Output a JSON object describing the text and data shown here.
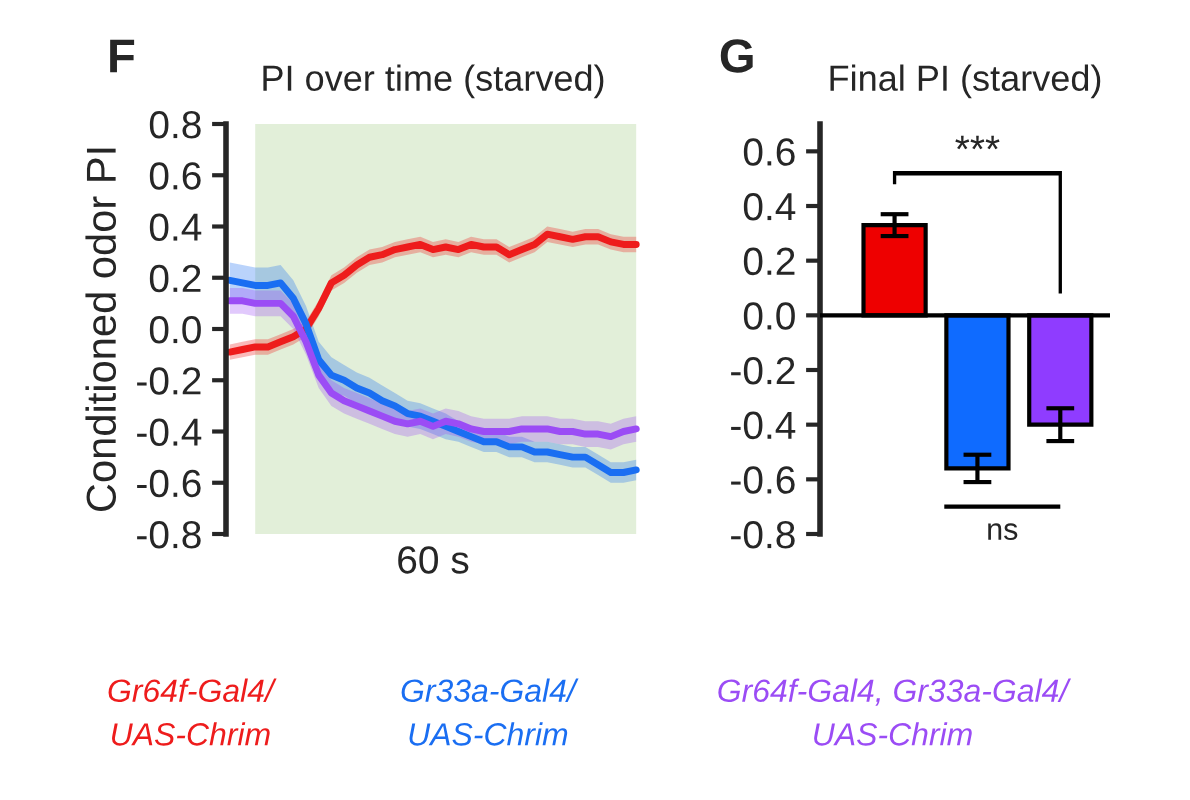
{
  "chart_data": [
    {
      "type": "line",
      "title": "PI over time (starved)",
      "xlabel": "60 s",
      "ylabel": "Conditioned odor PI",
      "annotations": [
        "F"
      ],
      "categories": [
        null,
        null,
        null,
        null,
        null,
        null,
        null,
        null,
        null,
        null,
        null,
        null,
        null,
        null,
        null,
        null,
        null,
        null,
        null,
        null,
        null,
        null,
        null,
        null,
        null,
        null,
        null,
        null,
        null,
        null,
        null,
        null,
        null
      ],
      "ylim": [
        -0.8,
        0.8
      ],
      "yticks": [
        {
          "value": -0.8,
          "label": "-0.8"
        },
        {
          "value": -0.6,
          "label": "-0.6"
        },
        {
          "value": -0.4,
          "label": "-0.4"
        },
        {
          "value": -0.2,
          "label": "-0.2"
        },
        {
          "value": 0,
          "label": "0.0"
        },
        {
          "value": 0.2,
          "label": "0.2"
        },
        {
          "value": 0.4,
          "label": "0.4"
        },
        {
          "value": 0.6,
          "label": "0.6"
        },
        {
          "value": 0.8,
          "label": "0.8"
        }
      ],
      "tick_labels": "y",
      "grid": false,
      "legend": "bottom",
      "marker": "none",
      "line_style": "solid",
      "series": [
        {
          "name": "Gr64f-Gal4/\nUAS-Chrim",
          "color": "#ee1c1c",
          "values": [
            -0.09,
            -0.08,
            -0.07,
            -0.07,
            -0.05,
            -0.03,
            0.0,
            0.08,
            0.18,
            0.21,
            0.25,
            0.28,
            0.29,
            0.31,
            0.32,
            0.33,
            0.31,
            0.32,
            0.31,
            0.33,
            0.32,
            0.32,
            0.29,
            0.31,
            0.33,
            0.37,
            0.36,
            0.35,
            0.36,
            0.36,
            0.34,
            0.33,
            0.33
          ],
          "lower": [
            -0.12,
            -0.11,
            -0.1,
            -0.1,
            -0.08,
            -0.06,
            -0.03,
            0.05,
            0.15,
            0.18,
            0.22,
            0.25,
            0.26,
            0.28,
            0.29,
            0.3,
            0.28,
            0.29,
            0.28,
            0.3,
            0.29,
            0.29,
            0.26,
            0.28,
            0.3,
            0.34,
            0.33,
            0.32,
            0.33,
            0.33,
            0.31,
            0.3,
            0.3
          ],
          "upper": [
            -0.06,
            -0.05,
            -0.04,
            -0.04,
            -0.02,
            0.0,
            0.03,
            0.11,
            0.21,
            0.24,
            0.28,
            0.31,
            0.32,
            0.34,
            0.35,
            0.36,
            0.34,
            0.35,
            0.34,
            0.36,
            0.35,
            0.35,
            0.32,
            0.34,
            0.36,
            0.4,
            0.39,
            0.38,
            0.39,
            0.39,
            0.37,
            0.36,
            0.36
          ]
        },
        {
          "name": "Gr33a-Gal4/\nUAS-Chrim",
          "color": "#1a6ef2",
          "values": [
            0.19,
            0.18,
            0.17,
            0.17,
            0.18,
            0.12,
            0.02,
            -0.12,
            -0.18,
            -0.2,
            -0.23,
            -0.25,
            -0.28,
            -0.3,
            -0.33,
            -0.34,
            -0.36,
            -0.38,
            -0.4,
            -0.42,
            -0.44,
            -0.44,
            -0.46,
            -0.46,
            -0.48,
            -0.48,
            -0.49,
            -0.5,
            -0.5,
            -0.53,
            -0.56,
            -0.56,
            -0.55
          ],
          "lower": [
            0.12,
            0.11,
            0.1,
            0.1,
            0.11,
            0.05,
            -0.05,
            -0.19,
            -0.25,
            -0.26,
            -0.29,
            -0.31,
            -0.34,
            -0.35,
            -0.38,
            -0.39,
            -0.41,
            -0.43,
            -0.44,
            -0.46,
            -0.48,
            -0.48,
            -0.5,
            -0.5,
            -0.52,
            -0.52,
            -0.53,
            -0.54,
            -0.54,
            -0.57,
            -0.6,
            -0.6,
            -0.59
          ],
          "upper": [
            0.26,
            0.25,
            0.24,
            0.24,
            0.25,
            0.19,
            0.09,
            -0.05,
            -0.11,
            -0.14,
            -0.17,
            -0.19,
            -0.22,
            -0.25,
            -0.28,
            -0.29,
            -0.31,
            -0.33,
            -0.36,
            -0.38,
            -0.4,
            -0.4,
            -0.42,
            -0.42,
            -0.44,
            -0.44,
            -0.45,
            -0.46,
            -0.46,
            -0.49,
            -0.52,
            -0.52,
            -0.51
          ]
        },
        {
          "name": "Gr64f-Gal4, Gr33a-Gal4/\nUAS-Chrim",
          "color": "#9b4cf5",
          "values": [
            0.11,
            0.11,
            0.1,
            0.1,
            0.1,
            0.05,
            -0.05,
            -0.18,
            -0.25,
            -0.28,
            -0.3,
            -0.32,
            -0.34,
            -0.36,
            -0.37,
            -0.36,
            -0.38,
            -0.36,
            -0.37,
            -0.39,
            -0.4,
            -0.4,
            -0.4,
            -0.39,
            -0.39,
            -0.39,
            -0.4,
            -0.4,
            -0.41,
            -0.41,
            -0.42,
            -0.4,
            -0.39
          ],
          "lower": [
            0.06,
            0.06,
            0.05,
            0.05,
            0.05,
            0.0,
            -0.1,
            -0.23,
            -0.3,
            -0.33,
            -0.35,
            -0.37,
            -0.39,
            -0.41,
            -0.42,
            -0.41,
            -0.43,
            -0.41,
            -0.42,
            -0.44,
            -0.45,
            -0.45,
            -0.45,
            -0.44,
            -0.44,
            -0.44,
            -0.45,
            -0.45,
            -0.46,
            -0.46,
            -0.47,
            -0.45,
            -0.44
          ],
          "upper": [
            0.16,
            0.16,
            0.15,
            0.15,
            0.15,
            0.1,
            0.0,
            -0.13,
            -0.2,
            -0.23,
            -0.25,
            -0.27,
            -0.29,
            -0.31,
            -0.32,
            -0.31,
            -0.33,
            -0.31,
            -0.32,
            -0.34,
            -0.35,
            -0.35,
            -0.35,
            -0.34,
            -0.34,
            -0.34,
            -0.35,
            -0.35,
            -0.36,
            -0.36,
            -0.37,
            -0.35,
            -0.34
          ]
        }
      ]
    },
    {
      "type": "bar",
      "title": "Final PI (starved)",
      "annotations": [
        "G",
        "***",
        "ns"
      ],
      "categories": [
        null,
        null,
        null
      ],
      "values": [
        0.33,
        -0.56,
        -0.4
      ],
      "errors": [
        0.04,
        0.05,
        0.06
      ],
      "colors": [
        "#ee0000",
        "#0f6bff",
        "#8f3cff"
      ],
      "ylim": [
        -0.8,
        0.7
      ],
      "yticks": [
        {
          "value": -0.8,
          "label": "-0.8"
        },
        {
          "value": -0.6,
          "label": "-0.6"
        },
        {
          "value": -0.4,
          "label": "-0.4"
        },
        {
          "value": -0.2,
          "label": "-0.2"
        },
        {
          "value": 0,
          "label": "0.0"
        },
        {
          "value": 0.2,
          "label": "0.2"
        },
        {
          "value": 0.4,
          "label": "0.4"
        },
        {
          "value": 0.6,
          "label": "0.6"
        }
      ],
      "tick_labels": "y",
      "grid": false,
      "ref_lines": [
        {
          "axis": "y",
          "value": 0,
          "color": "#000000"
        }
      ]
    }
  ]
}
